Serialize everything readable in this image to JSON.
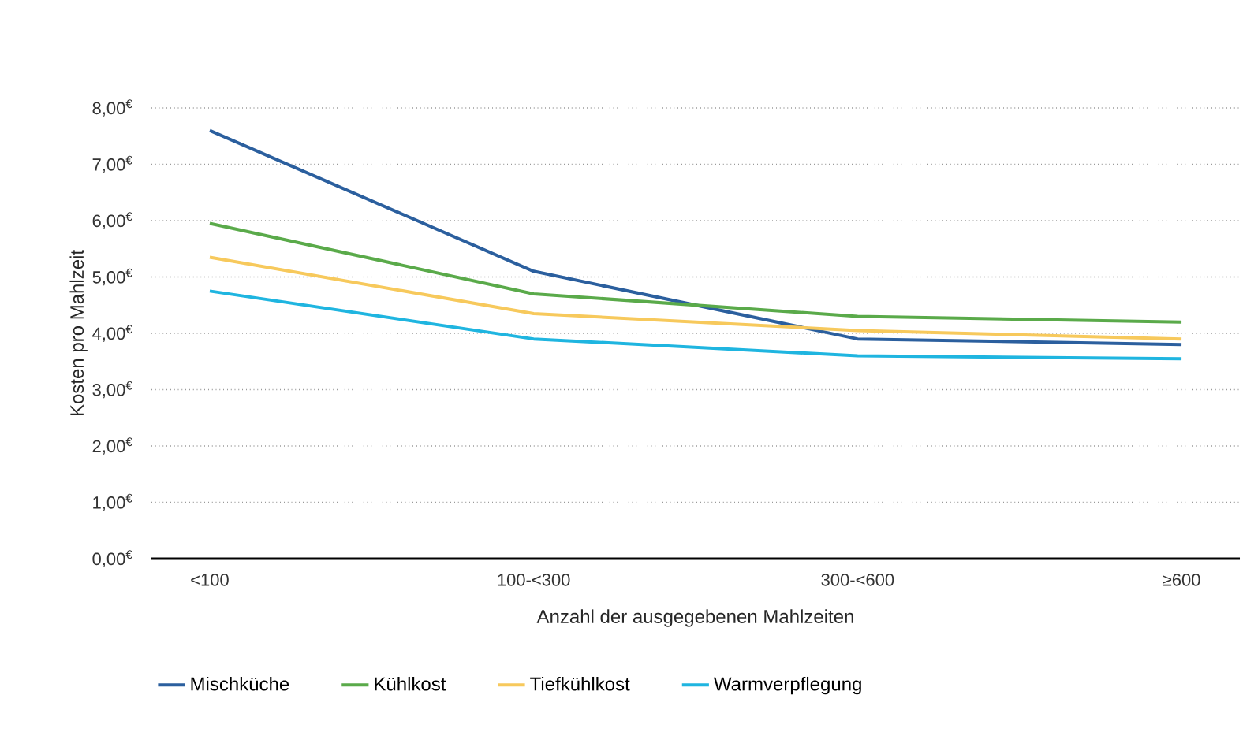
{
  "chart_data": {
    "type": "line",
    "xlabel": "Anzahl der ausgegebenen Mahlzeiten",
    "ylabel": "Kosten pro Mahlzeit",
    "categories": [
      "<100",
      "100-<300",
      "300-<600",
      "≥600"
    ],
    "series": [
      {
        "name": "Mischküche",
        "color": "#2b5f9e",
        "values": [
          7.6,
          5.1,
          3.9,
          3.8
        ]
      },
      {
        "name": "Kühlkost",
        "color": "#5aaa4a",
        "values": [
          5.95,
          4.7,
          4.3,
          4.2
        ]
      },
      {
        "name": "Tiefkühlkost",
        "color": "#f7c95c",
        "values": [
          5.35,
          4.35,
          4.05,
          3.9
        ]
      },
      {
        "name": "Warmverpflegung",
        "color": "#1fb5e0",
        "values": [
          4.75,
          3.9,
          3.6,
          3.55
        ]
      }
    ],
    "ylim": [
      0,
      8
    ],
    "yticks": [
      {
        "value": 0,
        "label": "0,00$^{€}$"
      },
      {
        "value": 1,
        "label": "1,00$^{€}$"
      },
      {
        "value": 2,
        "label": "2,00$^{€}$"
      },
      {
        "value": 3,
        "label": "3,00$^{€}$"
      },
      {
        "value": 4,
        "label": "4,00$^{€}$"
      },
      {
        "value": 5,
        "label": "5,00$^{€}$"
      },
      {
        "value": 6,
        "label": "6,00$^{€}$"
      },
      {
        "value": 7,
        "label": "7,00$^{€}$"
      },
      {
        "value": 8,
        "label": "8,00$^{€}$"
      }
    ],
    "grid": "y",
    "legend": "bottom",
    "marker": "none",
    "line_style": "solid"
  }
}
